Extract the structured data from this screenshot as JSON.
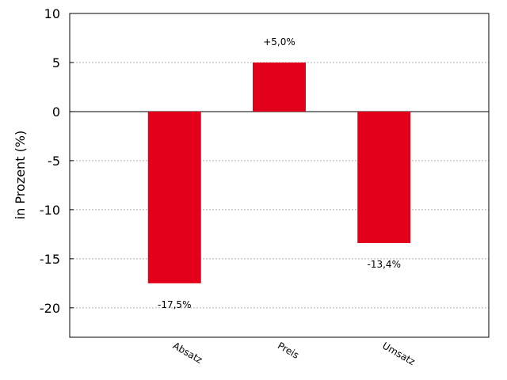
{
  "chart_data": {
    "type": "bar",
    "categories": [
      "Absatz",
      "Preis",
      "Umsatz"
    ],
    "values": [
      -17.5,
      5.0,
      -13.4
    ],
    "data_labels": [
      "-17,5%",
      "+5,0%",
      "-13,4%"
    ],
    "ylabel": "in Prozent (%)",
    "ylim": [
      -23,
      10
    ],
    "yticks": [
      10,
      5,
      0,
      -5,
      -10,
      -15,
      -20
    ],
    "ytick_labels": [
      "10",
      "5",
      "0",
      "-5",
      "-10",
      "-15",
      "-20"
    ],
    "grid": "horizontal-dotted",
    "bar_color": "#e2001a"
  }
}
